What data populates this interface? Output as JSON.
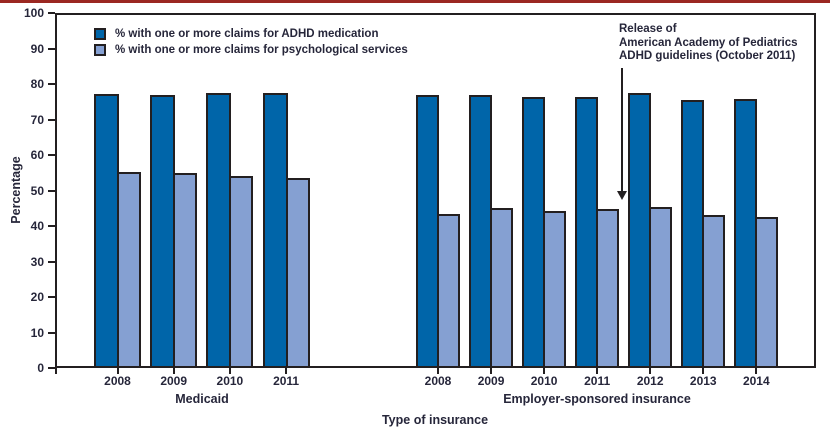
{
  "page": {
    "background": "#ffffff",
    "top_rule_color": "#9b2822",
    "text_color": "#26263a",
    "line_color": "#231f20"
  },
  "chart_data": {
    "type": "bar",
    "title": "",
    "ylabel": "Percentage",
    "xlabel": "Type of insurance",
    "ylim": [
      0,
      100
    ],
    "ytick_step": 10,
    "yticks": [
      0,
      10,
      20,
      30,
      40,
      50,
      60,
      70,
      80,
      90,
      100
    ],
    "grid": false,
    "legend_position": "top-left-inside",
    "legend": [
      {
        "label": "% with one or more claims for ADHD medication",
        "color": "#0065a9"
      },
      {
        "label": "% with one or more claims for psychological services",
        "color": "#85a0d2"
      }
    ],
    "groups": [
      {
        "label": "Medicaid",
        "categories": [
          "2008",
          "2009",
          "2010",
          "2011"
        ],
        "series": [
          {
            "name": "% with one or more claims for ADHD medication",
            "values": [
              77.2,
              77.0,
              77.6,
              77.4
            ]
          },
          {
            "name": "% with one or more claims for psychological services",
            "values": [
              55.1,
              54.8,
              54.2,
              53.6
            ]
          }
        ]
      },
      {
        "label": "Employer-sponsored insurance",
        "categories": [
          "2008",
          "2009",
          "2010",
          "2011",
          "2012",
          "2013",
          "2014"
        ],
        "series": [
          {
            "name": "% with one or more claims for ADHD medication",
            "values": [
              77.0,
              77.0,
              76.4,
              76.3,
              77.4,
              75.6,
              75.7
            ]
          },
          {
            "name": "% with one or more claims for psychological services",
            "values": [
              43.3,
              45.0,
              44.1,
              44.8,
              45.3,
              43.0,
              42.6
            ]
          }
        ]
      }
    ],
    "annotation": {
      "lines": [
        "Release of",
        "American Academy of Pediatrics",
        "ADHD guidelines (October 2011)"
      ]
    }
  }
}
